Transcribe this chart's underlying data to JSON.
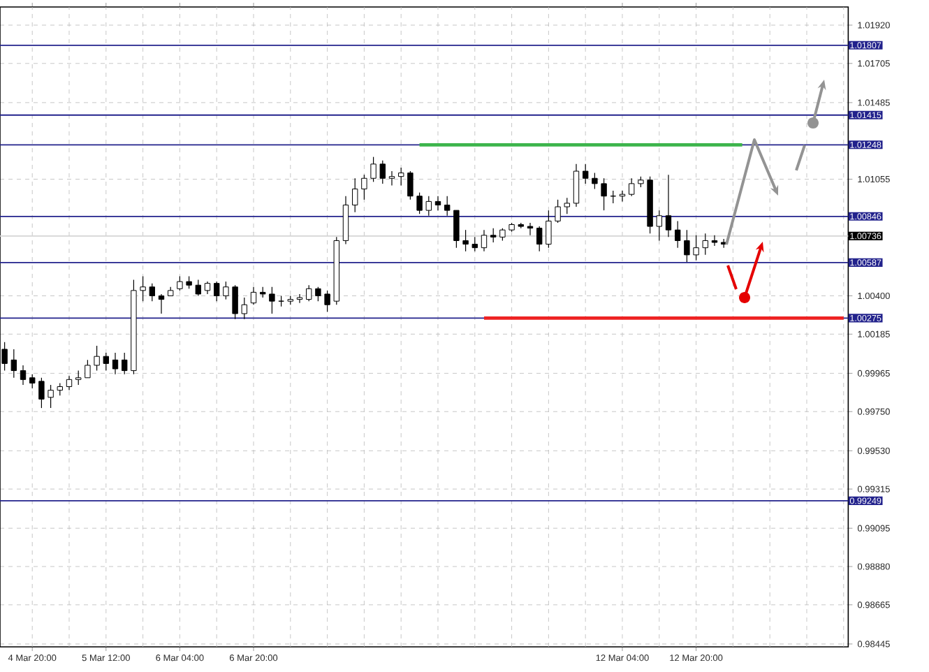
{
  "chart_data": {
    "type": "candlestick",
    "categories": [
      null,
      null,
      null,
      "4 Mar 20:00",
      null,
      null,
      null,
      null,
      null,
      null,
      null,
      "5 Mar 12:00",
      null,
      null,
      null,
      null,
      null,
      null,
      null,
      "6 Mar 04:00",
      null,
      null,
      null,
      null,
      null,
      null,
      null,
      "6 Mar 20:00",
      null,
      null,
      null,
      null,
      null,
      null,
      null,
      null,
      null,
      null,
      null,
      null,
      null,
      null,
      null,
      null,
      null,
      null,
      null,
      null,
      null,
      null,
      null,
      null,
      null,
      null,
      null,
      null,
      null,
      null,
      null,
      null,
      null,
      null,
      null,
      null,
      null,
      null,
      null,
      "12 Mar 04:00",
      null,
      null,
      null,
      null,
      null,
      null,
      null,
      "12 Mar 20:00",
      null,
      null,
      null,
      null,
      null,
      null,
      null,
      null,
      null,
      null,
      null,
      null,
      null,
      null,
      null,
      null
    ],
    "ohlc": [
      [
        1.001,
        1.0014,
        0.9998,
        1.0002
      ],
      [
        1.0004,
        1.001,
        0.9994,
        0.9998
      ],
      [
        0.9998,
        1.0001,
        0.999,
        0.9993
      ],
      [
        0.9994,
        0.9996,
        0.9988,
        0.9991
      ],
      [
        0.9992,
        0.9994,
        0.9977,
        0.9982
      ],
      [
        0.9983,
        0.999,
        0.9977,
        0.9987
      ],
      [
        0.9987,
        0.9991,
        0.9984,
        0.9989
      ],
      [
        0.9989,
        0.9995,
        0.9987,
        0.9993
      ],
      [
        0.9993,
        0.9998,
        0.999,
        0.9994
      ],
      [
        0.9994,
        1.0004,
        0.9994,
        1.0001
      ],
      [
        1.0001,
        1.0012,
        0.9998,
        1.0006
      ],
      [
        1.0006,
        1.0008,
        0.9998,
        1.0002
      ],
      [
        1.0004,
        1.0008,
        0.9996,
        0.9999
      ],
      [
        1.0004,
        1.0008,
        0.9996,
        0.9998
      ],
      [
        0.9998,
        1.0049,
        0.9996,
        1.0043
      ],
      [
        1.0043,
        1.0051,
        1.0037,
        1.0045
      ],
      [
        1.0045,
        1.0047,
        1.0037,
        1.004
      ],
      [
        1.004,
        1.0041,
        1.003,
        1.0038
      ],
      [
        1.004,
        1.0045,
        1.004,
        1.0043
      ],
      [
        1.0044,
        1.0051,
        1.0043,
        1.0048
      ],
      [
        1.0048,
        1.0051,
        1.0044,
        1.0046
      ],
      [
        1.0046,
        1.0049,
        1.004,
        1.0041
      ],
      [
        1.0043,
        1.0048,
        1.0041,
        1.0047
      ],
      [
        1.0047,
        1.0048,
        1.0037,
        1.004
      ],
      [
        1.004,
        1.0048,
        1.0038,
        1.0045
      ],
      [
        1.0045,
        1.0046,
        1.0027,
        1.003
      ],
      [
        1.003,
        1.0039,
        1.0027,
        1.0035
      ],
      [
        1.0036,
        1.0045,
        1.0035,
        1.0042
      ],
      [
        1.0042,
        1.0045,
        1.0039,
        1.0041
      ],
      [
        1.0041,
        1.0045,
        1.003,
        1.0037
      ],
      [
        1.0037,
        1.004,
        1.0034,
        1.0037
      ],
      [
        1.0037,
        1.004,
        1.0035,
        1.0038
      ],
      [
        1.0038,
        1.0041,
        1.0036,
        1.0039
      ],
      [
        1.0038,
        1.0046,
        1.0037,
        1.0044
      ],
      [
        1.0044,
        1.0045,
        1.0037,
        1.004
      ],
      [
        1.0041,
        1.0043,
        1.0031,
        1.0035
      ],
      [
        1.0037,
        1.0073,
        1.0035,
        1.0071
      ],
      [
        1.0071,
        1.0096,
        1.0069,
        1.0091
      ],
      [
        1.0091,
        1.0106,
        1.0087,
        1.01
      ],
      [
        1.01,
        1.0108,
        1.0094,
        1.0106
      ],
      [
        1.0106,
        1.0118,
        1.0104,
        1.0114
      ],
      [
        1.0114,
        1.0116,
        1.0103,
        1.0106
      ],
      [
        1.0106,
        1.011,
        1.0102,
        1.0107
      ],
      [
        1.0107,
        1.0112,
        1.0102,
        1.0109
      ],
      [
        1.0109,
        1.011,
        1.0094,
        1.0096
      ],
      [
        1.0096,
        1.0098,
        1.0086,
        1.0088
      ],
      [
        1.0088,
        1.0096,
        1.0085,
        1.0093
      ],
      [
        1.0093,
        1.0096,
        1.0088,
        1.0091
      ],
      [
        1.0091,
        1.0096,
        1.0085,
        1.0088
      ],
      [
        1.0088,
        1.0088,
        1.0067,
        1.0071
      ],
      [
        1.0071,
        1.0077,
        1.0065,
        1.0069
      ],
      [
        1.0069,
        1.0073,
        1.0065,
        1.0067
      ],
      [
        1.0067,
        1.0077,
        1.0065,
        1.0074
      ],
      [
        1.0074,
        1.0078,
        1.007,
        1.0073
      ],
      [
        1.0073,
        1.0078,
        1.0071,
        1.0077
      ],
      [
        1.0077,
        1.0081,
        1.0076,
        1.008
      ],
      [
        1.008,
        1.0081,
        1.0078,
        1.0079
      ],
      [
        1.0079,
        1.0081,
        1.0074,
        1.0078
      ],
      [
        1.0078,
        1.0079,
        1.0065,
        1.0069
      ],
      [
        1.0069,
        1.0088,
        1.0067,
        1.0082
      ],
      [
        1.0082,
        1.0094,
        1.0081,
        1.009
      ],
      [
        1.009,
        1.0095,
        1.0086,
        1.0092
      ],
      [
        1.0092,
        1.0114,
        1.009,
        1.011
      ],
      [
        1.011,
        1.0114,
        1.0103,
        1.0106
      ],
      [
        1.0106,
        1.0109,
        1.01,
        1.0103
      ],
      [
        1.0103,
        1.0106,
        1.0088,
        1.0096
      ],
      [
        1.0096,
        1.0099,
        1.0092,
        1.0096
      ],
      [
        1.0096,
        1.0099,
        1.0093,
        1.0097
      ],
      [
        1.0097,
        1.0106,
        1.0096,
        1.0103
      ],
      [
        1.0103,
        1.0107,
        1.0101,
        1.0105
      ],
      [
        1.0105,
        1.0107,
        1.0075,
        1.0079
      ],
      [
        1.0079,
        1.0088,
        1.0071,
        1.0085
      ],
      [
        1.0085,
        1.0108,
        1.0073,
        1.0077
      ],
      [
        1.0077,
        1.0082,
        1.0067,
        1.0071
      ],
      [
        1.0071,
        1.0077,
        1.0059,
        1.0063
      ],
      [
        1.0063,
        1.0074,
        1.006,
        1.0067
      ],
      [
        1.0067,
        1.0075,
        1.0063,
        1.0071
      ],
      [
        1.0071,
        1.0074,
        1.0068,
        1.007
      ],
      [
        1.007,
        1.0072,
        1.0067,
        1.0069
      ],
      null,
      null,
      null,
      null,
      null,
      null,
      null,
      null,
      null,
      null,
      null,
      null,
      null
    ],
    "color": "#000000",
    "series": [
      {
        "type": "line",
        "color": "#3cb44b",
        "values": [
          null,
          null,
          null,
          null,
          null,
          null,
          null,
          null,
          null,
          null,
          null,
          null,
          null,
          null,
          null,
          null,
          null,
          null,
          null,
          null,
          null,
          null,
          null,
          null,
          null,
          null,
          null,
          null,
          null,
          null,
          null,
          null,
          null,
          null,
          null,
          null,
          null,
          null,
          null,
          null,
          null,
          null,
          null,
          null,
          null,
          1.01248,
          1.01248,
          1.01248,
          1.01248,
          1.01248,
          1.01248,
          1.01248,
          1.01248,
          1.01248,
          1.01248,
          1.01248,
          1.01248,
          1.01248,
          1.01248,
          1.01248,
          1.01248,
          1.01248,
          1.01248,
          1.01248,
          1.01248,
          1.01248,
          1.01248,
          1.01248,
          1.01248,
          1.01248,
          1.01248,
          1.01248,
          1.01248,
          1.01248,
          1.01248,
          1.01248,
          1.01248,
          1.01248,
          1.01248,
          1.01248,
          1.01248,
          null,
          null,
          null,
          null,
          null,
          null,
          null,
          null,
          null,
          null,
          null
        ]
      },
      {
        "type": "line",
        "color": "#ee2222",
        "values": [
          null,
          null,
          null,
          null,
          null,
          null,
          null,
          null,
          null,
          null,
          null,
          null,
          null,
          null,
          null,
          null,
          null,
          null,
          null,
          null,
          null,
          null,
          null,
          null,
          null,
          null,
          null,
          null,
          null,
          null,
          null,
          null,
          null,
          null,
          null,
          null,
          null,
          null,
          null,
          null,
          null,
          null,
          null,
          null,
          null,
          null,
          null,
          null,
          null,
          null,
          null,
          null,
          1.00275,
          1.00275,
          1.00275,
          1.00275,
          1.00275,
          1.00275,
          1.00275,
          1.00275,
          1.00275,
          1.00275,
          1.00275,
          1.00275,
          1.00275,
          1.00275,
          1.00275,
          1.00275,
          1.00275,
          1.00275,
          1.00275,
          1.00275,
          1.00275,
          1.00275,
          1.00275,
          1.00275,
          1.00275,
          1.00275,
          1.00275,
          1.00275,
          1.00275,
          1.00275,
          1.00275,
          1.00275,
          1.00275,
          1.00275,
          1.00275,
          1.00275,
          1.00275,
          1.00275,
          1.00275,
          1.00275
        ]
      }
    ],
    "ylim": [
      0.98429,
      1.02022
    ],
    "yticks": [
      {
        "value": 1.0192,
        "label": "1.01920"
      },
      {
        "value": 1.01705,
        "label": "1.01705"
      },
      {
        "value": 1.01485,
        "label": "1.01485"
      },
      {
        "value": 1.01055,
        "label": "1.01055"
      },
      {
        "value": 1.004,
        "label": "1.00400"
      },
      {
        "value": 1.00185,
        "label": "1.00185"
      },
      {
        "value": 0.99965,
        "label": "0.99965"
      },
      {
        "value": 0.9975,
        "label": "0.99750"
      },
      {
        "value": 0.9953,
        "label": "0.99530"
      },
      {
        "value": 0.99315,
        "label": "0.99315"
      },
      {
        "value": 0.99095,
        "label": "0.99095"
      },
      {
        "value": 0.9888,
        "label": "0.98880"
      },
      {
        "value": 0.98665,
        "label": "0.98665"
      },
      {
        "value": 0.98445,
        "label": "0.98445"
      }
    ],
    "ref_lines": [
      {
        "axis": "y",
        "value": 1.01807,
        "label": "1.01807",
        "color": "#22228c"
      },
      {
        "axis": "y",
        "value": 1.01415,
        "label": "1.01415",
        "color": "#22228c"
      },
      {
        "axis": "y",
        "value": 1.01248,
        "label": "1.01248",
        "color": "#22228c"
      },
      {
        "axis": "y",
        "value": 1.00846,
        "label": "1.00846",
        "color": "#22228c"
      },
      {
        "axis": "y",
        "value": 1.00736,
        "label": "1.00736",
        "color": "#d4d4d4"
      },
      {
        "axis": "y",
        "value": 1.00587,
        "label": "1.00587",
        "color": "#22228c"
      },
      {
        "axis": "y",
        "value": 1.00275,
        "label": "1.00275",
        "color": "#22228c"
      },
      {
        "axis": "y",
        "value": 0.99249,
        "label": "0.99249",
        "color": "#22228c"
      }
    ],
    "grid": true
  }
}
